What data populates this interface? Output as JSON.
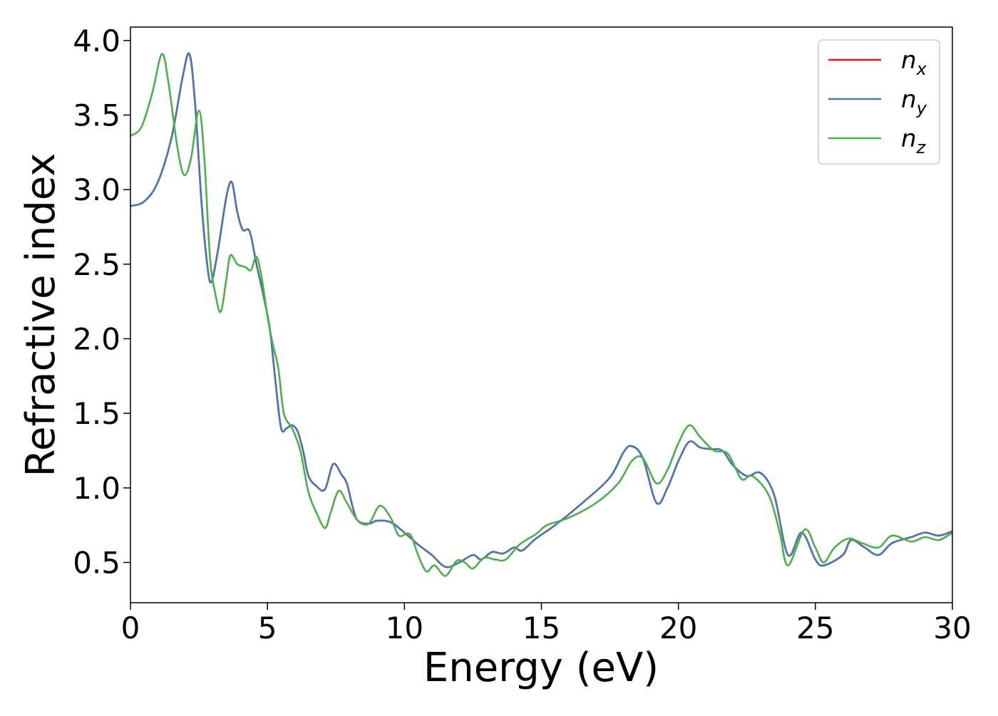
{
  "chart_data": {
    "type": "line",
    "xlabel": "Energy (eV)",
    "ylabel": "Refractive index",
    "xlim": [
      0,
      30
    ],
    "ylim": [
      0.23,
      4.09
    ],
    "xticks": [
      "0",
      "5",
      "10",
      "15",
      "20",
      "25",
      "30"
    ],
    "yticks": [
      "0.5",
      "1.0",
      "1.5",
      "2.0",
      "2.5",
      "3.0",
      "3.5",
      "4.0"
    ],
    "grid": false,
    "legend_position": "top-right",
    "series": [
      {
        "name": "n",
        "subscript": "x",
        "color": "#e41a1c",
        "points": [
          [
            0,
            2.89
          ],
          [
            0.5,
            2.92
          ],
          [
            1,
            3.05
          ],
          [
            1.5,
            3.35
          ],
          [
            1.9,
            3.75
          ],
          [
            2.15,
            3.91
          ],
          [
            2.35,
            3.6
          ],
          [
            2.6,
            2.9
          ],
          [
            2.8,
            2.5
          ],
          [
            2.95,
            2.38
          ],
          [
            3.2,
            2.6
          ],
          [
            3.5,
            2.95
          ],
          [
            3.7,
            3.05
          ],
          [
            3.9,
            2.85
          ],
          [
            4.1,
            2.73
          ],
          [
            4.35,
            2.72
          ],
          [
            4.6,
            2.5
          ],
          [
            4.9,
            2.25
          ],
          [
            5.1,
            2.05
          ],
          [
            5.3,
            1.7
          ],
          [
            5.5,
            1.4
          ],
          [
            5.7,
            1.4
          ],
          [
            5.9,
            1.42
          ],
          [
            6.1,
            1.38
          ],
          [
            6.3,
            1.25
          ],
          [
            6.5,
            1.08
          ],
          [
            6.8,
            1.01
          ],
          [
            7.1,
            0.99
          ],
          [
            7.4,
            1.16
          ],
          [
            7.7,
            1.09
          ],
          [
            7.9,
            1.03
          ],
          [
            8.1,
            0.88
          ],
          [
            8.3,
            0.78
          ],
          [
            8.7,
            0.76
          ],
          [
            9,
            0.78
          ],
          [
            9.5,
            0.77
          ],
          [
            10,
            0.7
          ],
          [
            10.5,
            0.62
          ],
          [
            11,
            0.55
          ],
          [
            11.5,
            0.47
          ],
          [
            12,
            0.5
          ],
          [
            12.5,
            0.55
          ],
          [
            12.8,
            0.52
          ],
          [
            13.2,
            0.57
          ],
          [
            13.6,
            0.56
          ],
          [
            14,
            0.6
          ],
          [
            14.3,
            0.58
          ],
          [
            14.8,
            0.66
          ],
          [
            15.5,
            0.75
          ],
          [
            16.5,
            0.9
          ],
          [
            17.5,
            1.07
          ],
          [
            18,
            1.24
          ],
          [
            18.3,
            1.28
          ],
          [
            18.7,
            1.2
          ],
          [
            19.2,
            0.9
          ],
          [
            19.6,
            1.0
          ],
          [
            20,
            1.18
          ],
          [
            20.4,
            1.31
          ],
          [
            20.8,
            1.27
          ],
          [
            21.2,
            1.26
          ],
          [
            21.6,
            1.25
          ],
          [
            22,
            1.15
          ],
          [
            22.5,
            1.08
          ],
          [
            23,
            1.1
          ],
          [
            23.5,
            0.95
          ],
          [
            24,
            0.55
          ],
          [
            24.5,
            0.7
          ],
          [
            25,
            0.52
          ],
          [
            25.3,
            0.48
          ],
          [
            26,
            0.55
          ],
          [
            26.3,
            0.65
          ],
          [
            26.8,
            0.6
          ],
          [
            27.3,
            0.55
          ],
          [
            27.8,
            0.63
          ],
          [
            28.5,
            0.67
          ],
          [
            29,
            0.7
          ],
          [
            29.5,
            0.68
          ],
          [
            30,
            0.71
          ]
        ]
      },
      {
        "name": "n",
        "subscript": "y",
        "color": "#4a77b0",
        "points": [
          [
            0,
            2.89
          ],
          [
            0.5,
            2.92
          ],
          [
            1,
            3.05
          ],
          [
            1.5,
            3.35
          ],
          [
            1.9,
            3.75
          ],
          [
            2.15,
            3.91
          ],
          [
            2.35,
            3.6
          ],
          [
            2.6,
            2.9
          ],
          [
            2.8,
            2.5
          ],
          [
            2.95,
            2.38
          ],
          [
            3.2,
            2.6
          ],
          [
            3.5,
            2.95
          ],
          [
            3.7,
            3.05
          ],
          [
            3.9,
            2.85
          ],
          [
            4.1,
            2.73
          ],
          [
            4.35,
            2.72
          ],
          [
            4.6,
            2.5
          ],
          [
            4.9,
            2.25
          ],
          [
            5.1,
            2.05
          ],
          [
            5.3,
            1.7
          ],
          [
            5.5,
            1.4
          ],
          [
            5.7,
            1.4
          ],
          [
            5.9,
            1.42
          ],
          [
            6.1,
            1.38
          ],
          [
            6.3,
            1.25
          ],
          [
            6.5,
            1.08
          ],
          [
            6.8,
            1.01
          ],
          [
            7.1,
            0.99
          ],
          [
            7.4,
            1.16
          ],
          [
            7.7,
            1.09
          ],
          [
            7.9,
            1.03
          ],
          [
            8.1,
            0.88
          ],
          [
            8.3,
            0.78
          ],
          [
            8.7,
            0.76
          ],
          [
            9,
            0.78
          ],
          [
            9.5,
            0.77
          ],
          [
            10,
            0.7
          ],
          [
            10.5,
            0.62
          ],
          [
            11,
            0.55
          ],
          [
            11.5,
            0.47
          ],
          [
            12,
            0.5
          ],
          [
            12.5,
            0.55
          ],
          [
            12.8,
            0.52
          ],
          [
            13.2,
            0.57
          ],
          [
            13.6,
            0.56
          ],
          [
            14,
            0.6
          ],
          [
            14.3,
            0.58
          ],
          [
            14.8,
            0.66
          ],
          [
            15.5,
            0.75
          ],
          [
            16.5,
            0.9
          ],
          [
            17.5,
            1.07
          ],
          [
            18,
            1.24
          ],
          [
            18.3,
            1.28
          ],
          [
            18.7,
            1.2
          ],
          [
            19.2,
            0.9
          ],
          [
            19.6,
            1.0
          ],
          [
            20,
            1.18
          ],
          [
            20.4,
            1.31
          ],
          [
            20.8,
            1.27
          ],
          [
            21.2,
            1.26
          ],
          [
            21.6,
            1.25
          ],
          [
            22,
            1.15
          ],
          [
            22.5,
            1.08
          ],
          [
            23,
            1.1
          ],
          [
            23.5,
            0.95
          ],
          [
            24,
            0.55
          ],
          [
            24.5,
            0.7
          ],
          [
            25,
            0.52
          ],
          [
            25.3,
            0.48
          ],
          [
            26,
            0.55
          ],
          [
            26.3,
            0.65
          ],
          [
            26.8,
            0.6
          ],
          [
            27.3,
            0.55
          ],
          [
            27.8,
            0.63
          ],
          [
            28.5,
            0.67
          ],
          [
            29,
            0.7
          ],
          [
            29.5,
            0.68
          ],
          [
            30,
            0.71
          ]
        ]
      },
      {
        "name": "n",
        "subscript": "z",
        "color": "#4daf4a",
        "points": [
          [
            0,
            3.36
          ],
          [
            0.4,
            3.42
          ],
          [
            0.8,
            3.65
          ],
          [
            1.15,
            3.91
          ],
          [
            1.4,
            3.7
          ],
          [
            1.7,
            3.3
          ],
          [
            1.95,
            3.1
          ],
          [
            2.2,
            3.2
          ],
          [
            2.5,
            3.53
          ],
          [
            2.7,
            3.2
          ],
          [
            2.9,
            2.55
          ],
          [
            3.1,
            2.3
          ],
          [
            3.3,
            2.18
          ],
          [
            3.5,
            2.4
          ],
          [
            3.65,
            2.56
          ],
          [
            3.9,
            2.5
          ],
          [
            4.2,
            2.48
          ],
          [
            4.4,
            2.46
          ],
          [
            4.6,
            2.55
          ],
          [
            4.8,
            2.4
          ],
          [
            5,
            2.15
          ],
          [
            5.2,
            1.96
          ],
          [
            5.4,
            1.8
          ],
          [
            5.6,
            1.5
          ],
          [
            5.9,
            1.4
          ],
          [
            6.2,
            1.25
          ],
          [
            6.5,
            0.97
          ],
          [
            6.8,
            0.83
          ],
          [
            7.1,
            0.73
          ],
          [
            7.3,
            0.83
          ],
          [
            7.6,
            0.98
          ],
          [
            7.9,
            0.9
          ],
          [
            8.3,
            0.78
          ],
          [
            8.7,
            0.76
          ],
          [
            9.1,
            0.88
          ],
          [
            9.5,
            0.8
          ],
          [
            9.8,
            0.68
          ],
          [
            10.2,
            0.69
          ],
          [
            10.5,
            0.55
          ],
          [
            10.8,
            0.44
          ],
          [
            11.1,
            0.48
          ],
          [
            11.5,
            0.41
          ],
          [
            11.9,
            0.51
          ],
          [
            12.2,
            0.5
          ],
          [
            12.5,
            0.46
          ],
          [
            12.9,
            0.53
          ],
          [
            13.3,
            0.52
          ],
          [
            13.7,
            0.52
          ],
          [
            14.2,
            0.62
          ],
          [
            14.8,
            0.69
          ],
          [
            15.2,
            0.75
          ],
          [
            16,
            0.8
          ],
          [
            17,
            0.9
          ],
          [
            17.8,
            1.03
          ],
          [
            18.3,
            1.18
          ],
          [
            18.7,
            1.2
          ],
          [
            19.2,
            1.03
          ],
          [
            19.6,
            1.12
          ],
          [
            20,
            1.3
          ],
          [
            20.4,
            1.42
          ],
          [
            20.8,
            1.34
          ],
          [
            21.3,
            1.25
          ],
          [
            21.8,
            1.23
          ],
          [
            22.3,
            1.06
          ],
          [
            22.7,
            1.08
          ],
          [
            23.3,
            0.95
          ],
          [
            23.7,
            0.7
          ],
          [
            24,
            0.48
          ],
          [
            24.6,
            0.72
          ],
          [
            25,
            0.6
          ],
          [
            25.3,
            0.5
          ],
          [
            25.7,
            0.6
          ],
          [
            26.2,
            0.66
          ],
          [
            26.7,
            0.63
          ],
          [
            27.3,
            0.6
          ],
          [
            27.8,
            0.68
          ],
          [
            28.5,
            0.64
          ],
          [
            29,
            0.67
          ],
          [
            29.5,
            0.65
          ],
          [
            30,
            0.7
          ]
        ]
      }
    ]
  }
}
